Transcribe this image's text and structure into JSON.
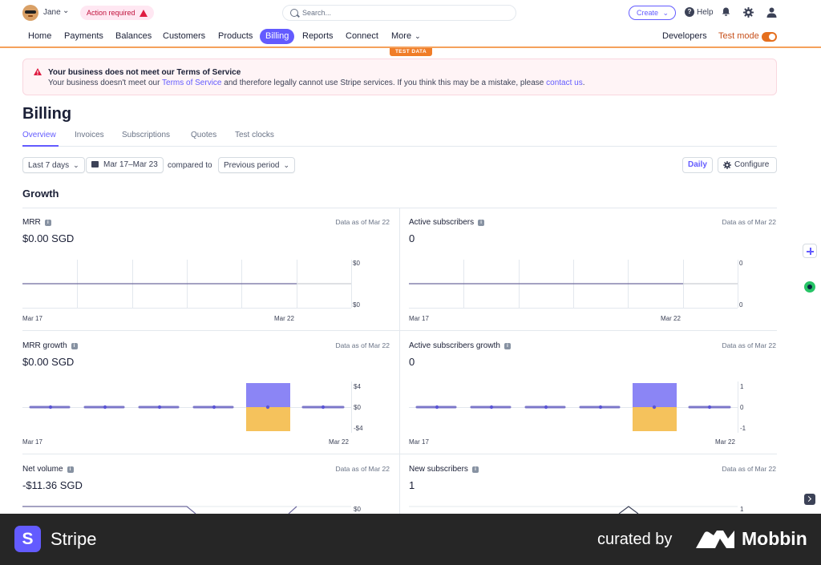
{
  "topbar": {
    "user_name": "Jane",
    "action_badge": "Action required",
    "search_placeholder": "Search...",
    "create_label": "Create",
    "help_label": "Help"
  },
  "nav": {
    "items": [
      "Home",
      "Payments",
      "Balances",
      "Customers",
      "Products",
      "Billing",
      "Reports",
      "Connect",
      "More"
    ],
    "active": "Billing",
    "developers": "Developers",
    "test_mode": "Test mode",
    "test_mode_on": true,
    "test_data_badge": "TEST DATA"
  },
  "alert": {
    "title": "Your business does not meet our Terms of Service",
    "body_before": "Your business doesn't meet our ",
    "body_link1": "Terms of Service",
    "body_middle": " and therefore legally cannot use Stripe services. If you think this may be a mistake, please ",
    "body_link2": "contact us",
    "body_after": "."
  },
  "page": {
    "title": "Billing",
    "tabs": [
      "Overview",
      "Invoices",
      "Subscriptions",
      "Quotes",
      "Test clocks"
    ],
    "active_tab": "Overview"
  },
  "filters": {
    "range": "Last 7 days",
    "dates": "Mar 17–Mar 23",
    "compared_to": "compared to",
    "comparison": "Previous period",
    "interval": "Daily",
    "configure": "Configure"
  },
  "section_title": "Growth",
  "cards": [
    {
      "label": "MRR",
      "as_of": "Data as of Mar 22",
      "value": "$0.00 SGD",
      "y_top": "$0",
      "y_bottom": "$0",
      "x_start": "Mar 17",
      "x_end": "Mar 22"
    },
    {
      "label": "Active subscribers",
      "as_of": "Data as of Mar 22",
      "value": "0",
      "y_top": "0",
      "y_bottom": "0",
      "x_start": "Mar 17",
      "x_end": "Mar 22"
    },
    {
      "label": "MRR growth",
      "as_of": "Data as of Mar 22",
      "value": "$0.00 SGD",
      "y_top": "$4",
      "y_mid": "$0",
      "y_bottom": "-$4",
      "x_start": "Mar 17",
      "x_end": "Mar 22"
    },
    {
      "label": "Active subscribers growth",
      "as_of": "Data as of Mar 22",
      "value": "0",
      "y_top": "1",
      "y_mid": "0",
      "y_bottom": "-1",
      "x_start": "Mar 17",
      "x_end": "Mar 22"
    },
    {
      "label": "Net volume",
      "as_of": "Data as of Mar 22",
      "value": "-$11.36 SGD",
      "y_top": "$0"
    },
    {
      "label": "New subscribers",
      "as_of": "Data as of Mar 22",
      "value": "1",
      "y_top": "1"
    }
  ],
  "colors": {
    "accent": "#635bff",
    "bar_positive": "#8b85f5",
    "bar_negative": "#f5c25c",
    "test_orange": "#f07d28",
    "danger": "#df1b41"
  },
  "footer": {
    "brand_initial": "S",
    "brand_name": "Stripe",
    "curated_by": "curated by",
    "curator": "Mobbin"
  }
}
